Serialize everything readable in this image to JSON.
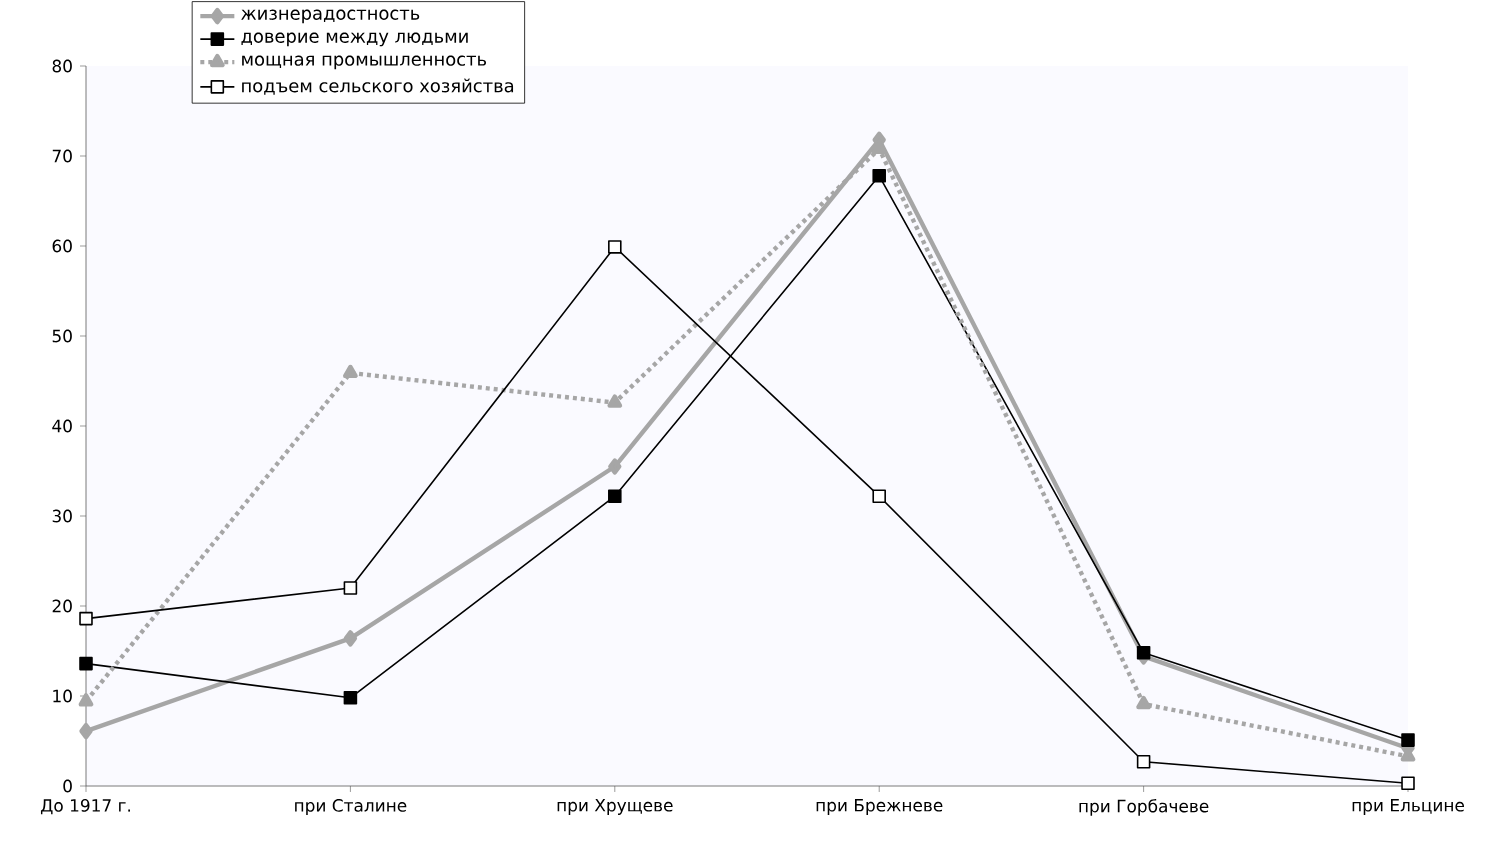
{
  "chart_data": {
    "type": "line",
    "categories": [
      "До 1917 г.",
      "при Сталине",
      "при Хрущеве",
      "при Брежневе",
      "при Горбачеве",
      "при Ельцине"
    ],
    "ylim": [
      0,
      80
    ],
    "yticks": [
      0,
      10,
      20,
      30,
      40,
      50,
      60,
      70,
      80
    ],
    "grid": false,
    "legend": "top left",
    "series": [
      {
        "name": "жизнерадостность",
        "color": "#a6a6a6",
        "marker": "diamond",
        "line_style": "solid",
        "values": [
          6.1,
          16.4,
          35.5,
          71.8,
          14.4,
          4.2
        ]
      },
      {
        "name": "доверие между людьми",
        "color": "#000000",
        "marker": "square",
        "line_style": "solid",
        "values": [
          13.6,
          9.8,
          32.2,
          67.8,
          14.8,
          5.1
        ]
      },
      {
        "name": "мощная промышленность",
        "color": "#a6a6a6",
        "marker": "triangle",
        "line_style": "dotted",
        "values": [
          9.4,
          45.9,
          42.6,
          70.8,
          9.1,
          3.3
        ]
      },
      {
        "name": "подъем сельского хозяйства",
        "color": "#000000",
        "marker": "square-open",
        "line_style": "solid",
        "values": [
          18.6,
          22.0,
          59.9,
          32.2,
          2.7,
          0.3
        ]
      }
    ]
  }
}
